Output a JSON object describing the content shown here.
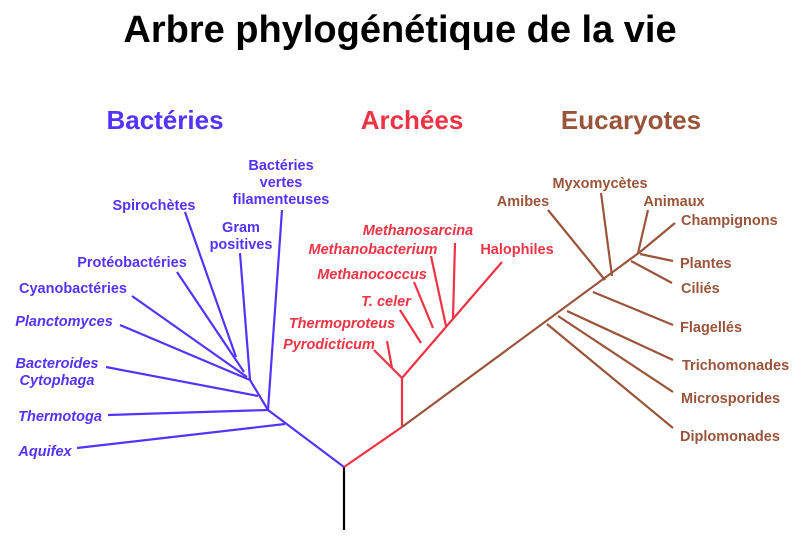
{
  "title": "Arbre phylogénétique de la vie",
  "colors": {
    "bacteria": "#5533ff",
    "archaea": "#ee3344",
    "eukaryotes": "#99543a",
    "root": "#000000"
  },
  "groups": {
    "bacteria": {
      "label": "Bactéries",
      "taxa": [
        "Bactéries",
        "vertes",
        "filamenteuses",
        "Spirochètes",
        "Gram",
        "positives",
        "Protéobactéries",
        "Cyanobactéries",
        "Planctomyces",
        "Bacteroides",
        "Cytophaga",
        "Thermotoga",
        "Aquifex"
      ]
    },
    "archaea": {
      "label": "Archées",
      "taxa": [
        "Methanosarcina",
        "Methanobacterium",
        "Halophiles",
        "Methanococcus",
        "T. celer",
        "Thermoproteus",
        "Pyrodicticum"
      ]
    },
    "eukaryotes": {
      "label": "Eucaryotes",
      "taxa": [
        "Myxomycètes",
        "Amibes",
        "Animaux",
        "Champignons",
        "Plantes",
        "Ciliés",
        "Flagellés",
        "Trichomonades",
        "Microsporides",
        "Diplomonades"
      ]
    }
  }
}
